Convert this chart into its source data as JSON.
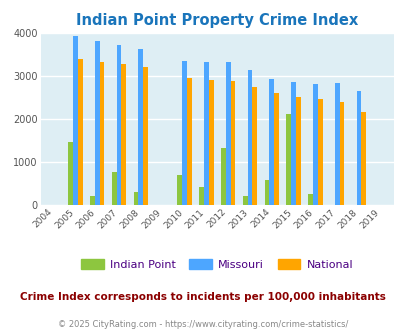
{
  "title": "Indian Point Property Crime Index",
  "years": [
    2004,
    2005,
    2006,
    2007,
    2008,
    2009,
    2010,
    2011,
    2012,
    2013,
    2014,
    2015,
    2016,
    2017,
    2018,
    2019
  ],
  "indian_point": [
    0,
    1460,
    200,
    760,
    290,
    0,
    680,
    400,
    1330,
    200,
    570,
    2120,
    240,
    0,
    0,
    0
  ],
  "missouri": [
    0,
    3940,
    3820,
    3720,
    3630,
    0,
    3340,
    3330,
    3330,
    3130,
    2920,
    2860,
    2800,
    2840,
    2640,
    0
  ],
  "national": [
    0,
    3400,
    3330,
    3270,
    3210,
    0,
    2940,
    2900,
    2870,
    2730,
    2600,
    2500,
    2460,
    2380,
    2170,
    0
  ],
  "indian_point_color": "#8dc63f",
  "missouri_color": "#4da6ff",
  "national_color": "#ffa500",
  "bg_color": "#deeef4",
  "title_color": "#1a75bb",
  "legend_text_color": "#4b0082",
  "subtitle_color": "#8b0000",
  "footer_color": "#888888",
  "ylim": [
    0,
    4000
  ],
  "yticks": [
    0,
    1000,
    2000,
    3000,
    4000
  ],
  "subtitle": "Crime Index corresponds to incidents per 100,000 inhabitants",
  "footer": "© 2025 CityRating.com - https://www.cityrating.com/crime-statistics/",
  "bar_width": 0.22
}
